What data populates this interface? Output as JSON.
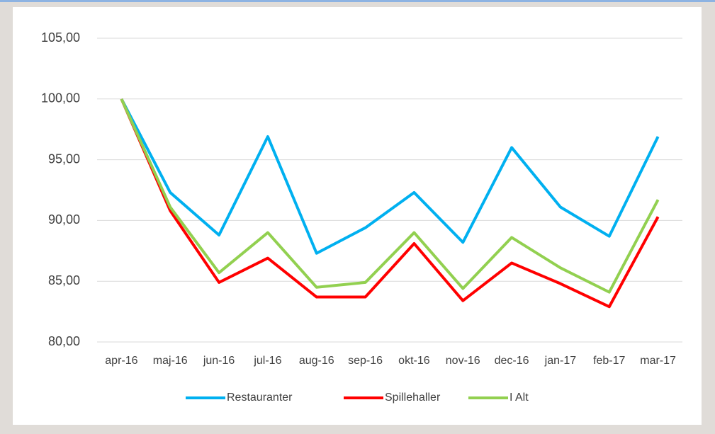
{
  "chart_data": {
    "type": "line",
    "categories": [
      "apr-16",
      "maj-16",
      "jun-16",
      "jul-16",
      "aug-16",
      "sep-16",
      "okt-16",
      "nov-16",
      "dec-16",
      "jan-17",
      "feb-17",
      "mar-17"
    ],
    "series": [
      {
        "name": "Restauranter",
        "color": "#00b0f0",
        "values": [
          100,
          92.3,
          88.8,
          96.9,
          87.3,
          89.4,
          92.3,
          88.2,
          96.0,
          91.1,
          88.7,
          96.9
        ]
      },
      {
        "name": "Spillehaller",
        "color": "#ff0000",
        "values": [
          100,
          90.8,
          84.9,
          86.9,
          83.7,
          83.7,
          88.1,
          83.4,
          86.5,
          84.8,
          82.9,
          90.3
        ]
      },
      {
        "name": "I Alt",
        "color": "#92d050",
        "values": [
          100,
          91.1,
          85.7,
          89.0,
          84.5,
          84.9,
          89.0,
          84.4,
          88.6,
          86.1,
          84.1,
          91.7
        ]
      }
    ],
    "ylim": [
      80,
      105
    ],
    "yticks": [
      {
        "value": 80,
        "label": "80,00"
      },
      {
        "value": 85,
        "label": "85,00"
      },
      {
        "value": 90,
        "label": "90,00"
      },
      {
        "value": 95,
        "label": "95,00"
      },
      {
        "value": 100,
        "label": "100,00"
      },
      {
        "value": 105,
        "label": "105,00"
      }
    ],
    "grid": true,
    "legend": "bottom"
  }
}
